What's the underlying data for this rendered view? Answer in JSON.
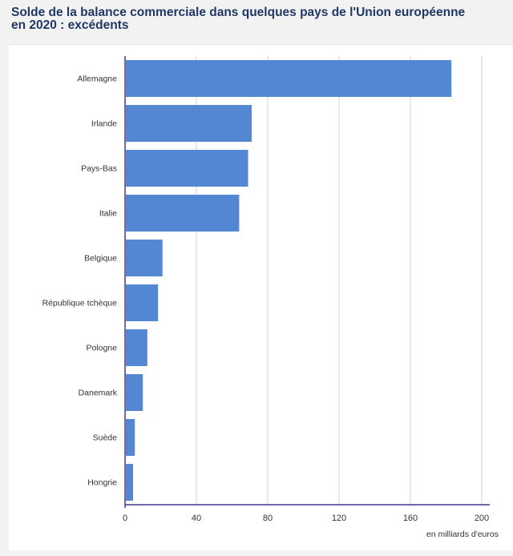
{
  "chart_data": {
    "type": "bar",
    "orientation": "horizontal",
    "title_lines": [
      "Solde de la balance commerciale dans quelques pays de l'Union européenne",
      "en 2020 : excédents"
    ],
    "categories": [
      "Allemagne",
      "Irlande",
      "Pays-Bas",
      "Italie",
      "Belgique",
      "République tchèque",
      "Pologne",
      "Danemark",
      "Suède",
      "Hongrie"
    ],
    "values": [
      183,
      71,
      69,
      64,
      21,
      18.5,
      12.5,
      10,
      5.5,
      4.5
    ],
    "xlim": [
      0,
      200
    ],
    "xticks": [
      "0",
      "40",
      "80",
      "120",
      "160",
      "200"
    ],
    "xlabel": "en milliards d'euros",
    "grid": true,
    "bar_color": "#5387d3"
  }
}
